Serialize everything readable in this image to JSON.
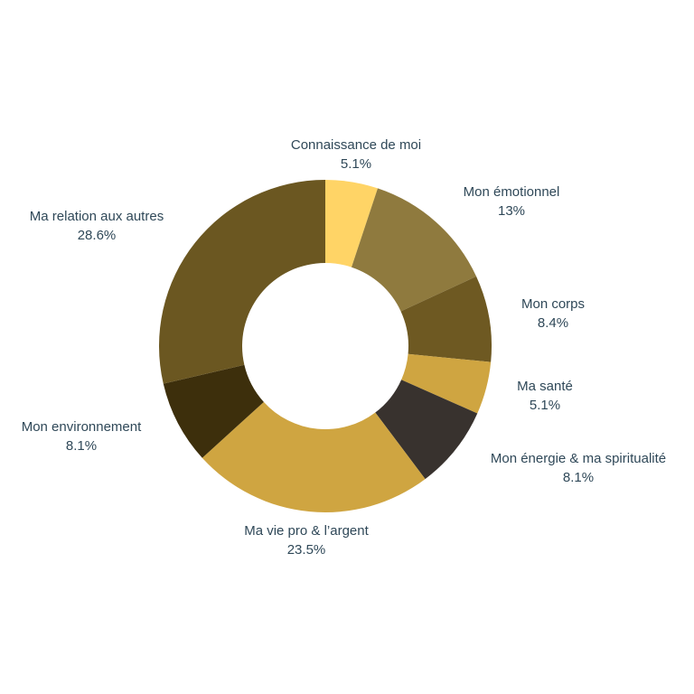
{
  "chart_data": {
    "type": "pie",
    "donut": true,
    "title": "",
    "legend": "none",
    "slices": [
      {
        "label": "Connaissance de moi",
        "value": 5.1,
        "value_label": "5.1%",
        "color": "#ffd466"
      },
      {
        "label": "Mon émotionnel",
        "value": 13,
        "value_label": "13%",
        "color": "#8f7a3e"
      },
      {
        "label": "Mon corps",
        "value": 8.4,
        "value_label": "8.4%",
        "color": "#6e5922"
      },
      {
        "label": "Ma santé",
        "value": 5.1,
        "value_label": "5.1%",
        "color": "#cfa541"
      },
      {
        "label": "Mon énergie & ma spiritualité",
        "value": 8.1,
        "value_label": "8.1%",
        "color": "#38322e"
      },
      {
        "label": "Ma vie pro & l’argent",
        "value": 23.5,
        "value_label": "23.5%",
        "color": "#cfa541"
      },
      {
        "label": "Mon environnement",
        "value": 8.1,
        "value_label": "8.1%",
        "color": "#3d2f0c"
      },
      {
        "label": "Ma relation aux autres",
        "value": 28.6,
        "value_label": "28.6%",
        "color": "#6b5721"
      }
    ]
  }
}
